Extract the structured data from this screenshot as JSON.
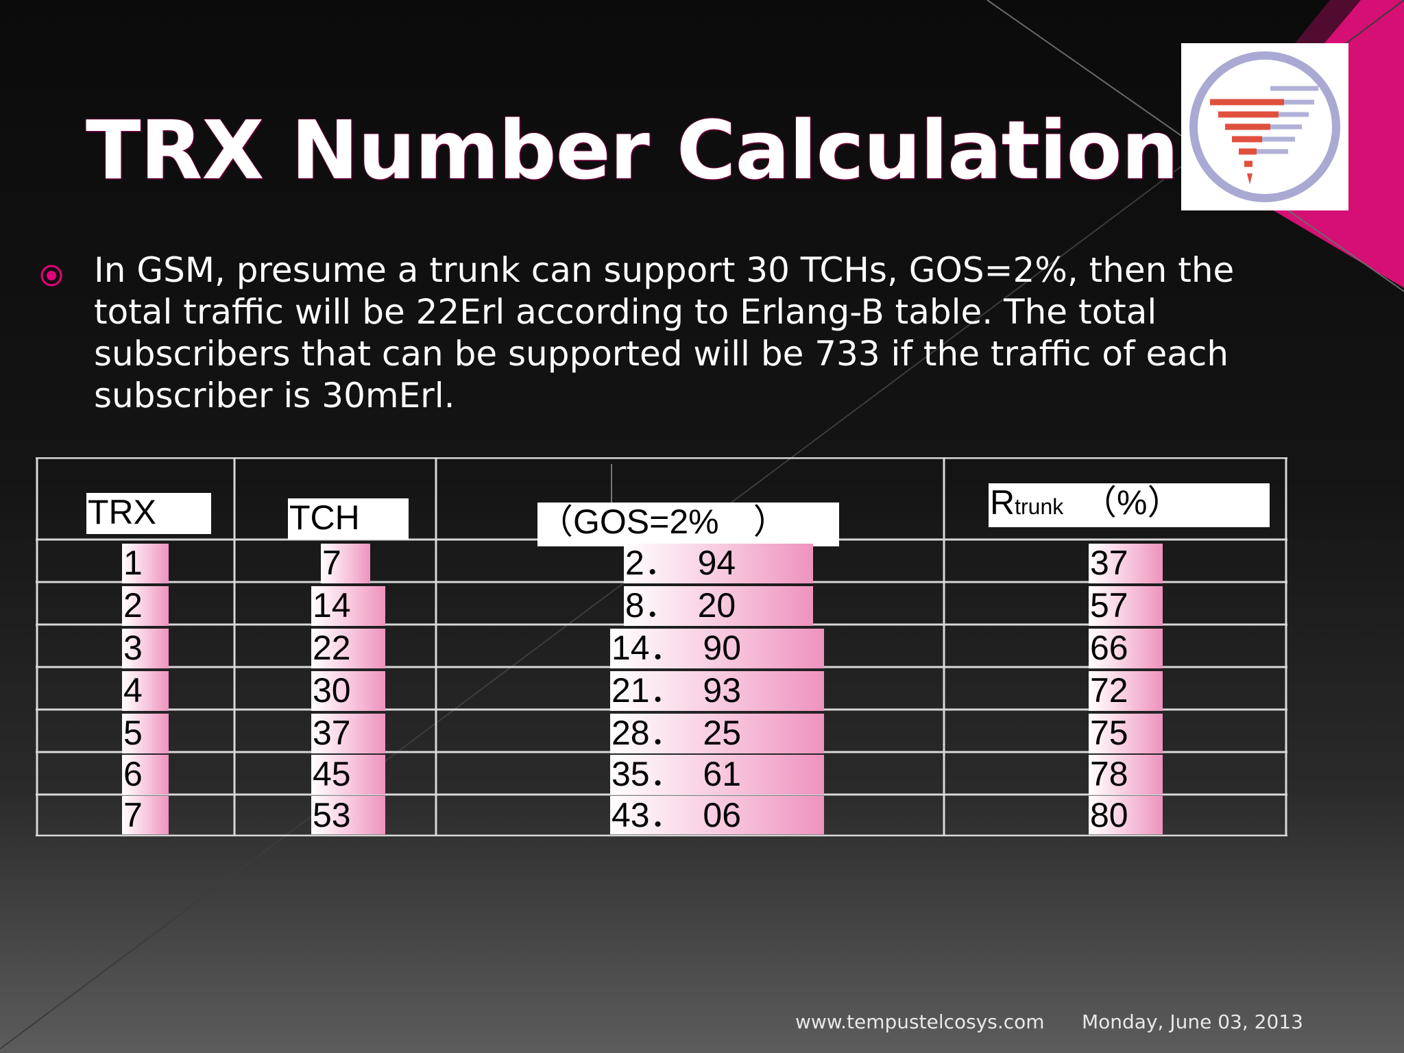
{
  "slide": {
    "title": "TRX Number Calculation",
    "bullet": "In GSM, presume a trunk can support 30 TCHs, GOS=2%,   then the\ntotal traffic will be 22Erl according to Erlang-B table. The total\nsubscribers that can be supported will be 733 if the traffic of each\nsubscriber is 30mErl.",
    "colors": {
      "accent": "#e6007a",
      "background": "#111111",
      "text": "#ffffff"
    }
  },
  "table": {
    "headers": {
      "trx": "TRX",
      "tch": "TCH",
      "gos": "（GOS=2%　）",
      "rtrunk_r": "R",
      "rtrunk_sub": "trunk",
      "rtrunk_pct": "（%）"
    },
    "rows": [
      {
        "trx": "1",
        "tch": "7",
        "gos": "2．  94",
        "rtrunk": "37"
      },
      {
        "trx": "2",
        "tch": "14",
        "gos": "8．  20",
        "rtrunk": "57"
      },
      {
        "trx": "3",
        "tch": "22",
        "gos": "14．  90",
        "rtrunk": "66"
      },
      {
        "trx": "4",
        "tch": "30",
        "gos": "21．  93",
        "rtrunk": "72"
      },
      {
        "trx": "5",
        "tch": "37",
        "gos": "28．  25",
        "rtrunk": "75"
      },
      {
        "trx": "6",
        "tch": "45",
        "gos": "35．  61",
        "rtrunk": "78"
      },
      {
        "trx": "7",
        "tch": "53",
        "gos": "43．  06",
        "rtrunk": "80"
      }
    ]
  },
  "footer": {
    "website": "www.tempustelcosys.com",
    "date": "Monday, June 03, 2013"
  },
  "icons": {
    "bullet": "circle-bullet-icon",
    "logo": "funnel-logo-icon"
  }
}
